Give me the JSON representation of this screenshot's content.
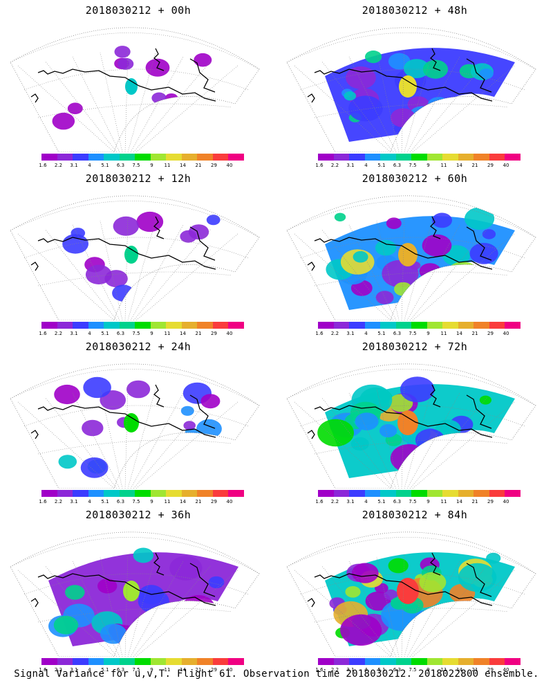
{
  "panels": [
    {
      "title": "2018030212 + 00h",
      "intensity": 0
    },
    {
      "title": "2018030212 + 48h",
      "intensity": 4
    },
    {
      "title": "2018030212 + 12h",
      "intensity": 1
    },
    {
      "title": "2018030212 + 60h",
      "intensity": 5
    },
    {
      "title": "2018030212 + 24h",
      "intensity": 2
    },
    {
      "title": "2018030212 + 72h",
      "intensity": 6
    },
    {
      "title": "2018030212 + 36h",
      "intensity": 3
    },
    {
      "title": "2018030212 + 84h",
      "intensity": 7
    }
  ],
  "colorbar": {
    "ticks": [
      "1.6",
      "2.2",
      "3.1",
      "4",
      "5.1",
      "6.3",
      "7.5",
      "9",
      "11",
      "14",
      "21",
      "29",
      "40"
    ],
    "colors": [
      "#a000c8",
      "#8c28d8",
      "#3c3cff",
      "#1e90ff",
      "#00c8c8",
      "#00d28c",
      "#00dc00",
      "#a0e632",
      "#e6dc32",
      "#e6af2d",
      "#f08228",
      "#fa3c3c",
      "#f00082"
    ]
  },
  "footer": "Signal Variance for u,v,T. Flight 61. Observation time 2018030212. 2018022800 ensemble."
}
